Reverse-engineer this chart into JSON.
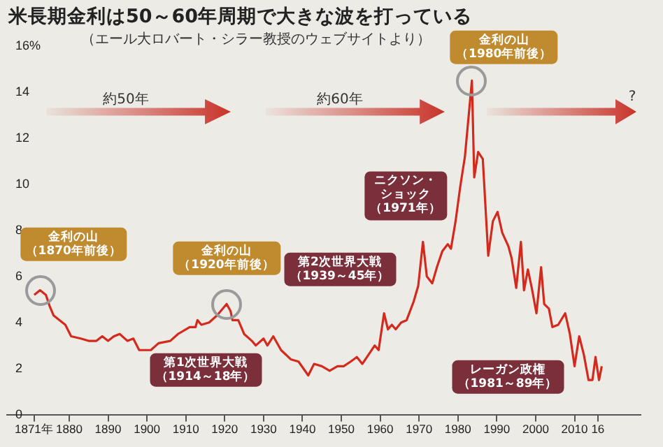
{
  "chart_data": {
    "type": "line",
    "title": "米長期金利は50～60年周期で大きな波を打っている",
    "subtitle": "（エール大ロバート・シラー教授のウェブサイトより）",
    "x": [
      1871,
      1872.5,
      1874,
      1875,
      1876,
      1879,
      1880.5,
      1883,
      1885,
      1887,
      1888.5,
      1890,
      1891.5,
      1893,
      1895,
      1896.5,
      1898,
      1901,
      1903,
      1906,
      1908,
      1911,
      1912.5,
      1913,
      1914,
      1916,
      1918,
      1919,
      1920.5,
      1921.5,
      1922,
      1923.5,
      1925,
      1927,
      1928,
      1930,
      1931,
      1932.5,
      1934.5,
      1937,
      1939,
      1941.5,
      1943,
      1945,
      1947,
      1949,
      1950.6,
      1952.4,
      1954,
      1955.4,
      1957,
      1958.6,
      1959.6,
      1961,
      1962,
      1963,
      1964,
      1965.4,
      1966.8,
      1968.6,
      1969.8,
      1971,
      1972,
      1973.4,
      1974.6,
      1976,
      1977.4,
      1978.2,
      1979.4,
      1980.6,
      1981.8,
      1983.6,
      1984.2,
      1985.2,
      1986.4,
      1987.8,
      1989,
      1990.2,
      1991.4,
      1993,
      1993.8,
      1995,
      1996.2,
      1997,
      1998,
      1999,
      2000.2,
      2001.4,
      2002.2,
      2003.4,
      2004.3,
      2005.8,
      2007.6,
      2008.8,
      2010,
      2011.2,
      2012.4,
      2013.6,
      2014.6,
      2015.4,
      2016.3,
      2017
    ],
    "values": [
      5.2,
      5.4,
      5.2,
      4.7,
      4.3,
      3.9,
      3.4,
      3.3,
      3.2,
      3.2,
      3.4,
      3.2,
      3.4,
      3.5,
      3.2,
      3.3,
      2.8,
      2.8,
      3.1,
      3.2,
      3.5,
      3.8,
      3.8,
      4.1,
      3.9,
      4.0,
      4.3,
      4.5,
      4.8,
      4.5,
      4.1,
      4.1,
      3.5,
      3.2,
      3.0,
      3.3,
      3.0,
      3.4,
      2.8,
      2.4,
      2.3,
      1.7,
      2.2,
      2.1,
      1.9,
      2.1,
      2.1,
      2.3,
      2.5,
      2.2,
      2.6,
      3.0,
      2.8,
      4.4,
      3.7,
      3.9,
      3.7,
      4.0,
      4.1,
      4.9,
      5.6,
      7.5,
      6.0,
      5.7,
      6.4,
      7.1,
      7.4,
      7.2,
      8.4,
      9.9,
      11.2,
      14.5,
      10.3,
      11.4,
      11.1,
      6.9,
      8.4,
      8.8,
      7.9,
      7.3,
      6.8,
      5.5,
      7.5,
      5.4,
      6.3,
      5.5,
      4.4,
      6.4,
      4.8,
      4.6,
      3.8,
      3.9,
      4.4,
      3.5,
      2.1,
      3.4,
      2.6,
      1.5,
      1.5,
      2.5,
      1.5,
      2.1
    ],
    "color": "#d42a1e",
    "marker": "none",
    "line_style": "solid",
    "legend": false,
    "xlim": [
      1864,
      2027
    ],
    "xticks": [
      {
        "value": 1871,
        "label": "1871年"
      },
      1880,
      1890,
      1900,
      1910,
      1920,
      1930,
      1940,
      1950,
      1960,
      1970,
      1980,
      1990,
      2000,
      2010,
      {
        "value": 2016,
        "label": "16"
      }
    ],
    "ylim": [
      0,
      16
    ],
    "yticks": [
      0,
      2,
      4,
      6,
      8,
      10,
      12,
      14,
      {
        "value": 16,
        "label": "16%"
      }
    ],
    "annotations": [
      {
        "text": "金利の山（1870年前後）",
        "x": 1872.5,
        "y": 5.4
      },
      {
        "text": "金利の山（1920年前後）",
        "x": 1920.5,
        "y": 4.8
      },
      {
        "text": "金利の山（1980年前後）",
        "x": 1983.6,
        "y": 14.5
      },
      "第1次世界大戦（1914～18年）",
      "第2次世界大戦（1939～45年）",
      "ニクソン・ショック（1971年）",
      "レーガン政権（1981～89年）",
      "約50年",
      "約60年",
      "?"
    ]
  }
}
